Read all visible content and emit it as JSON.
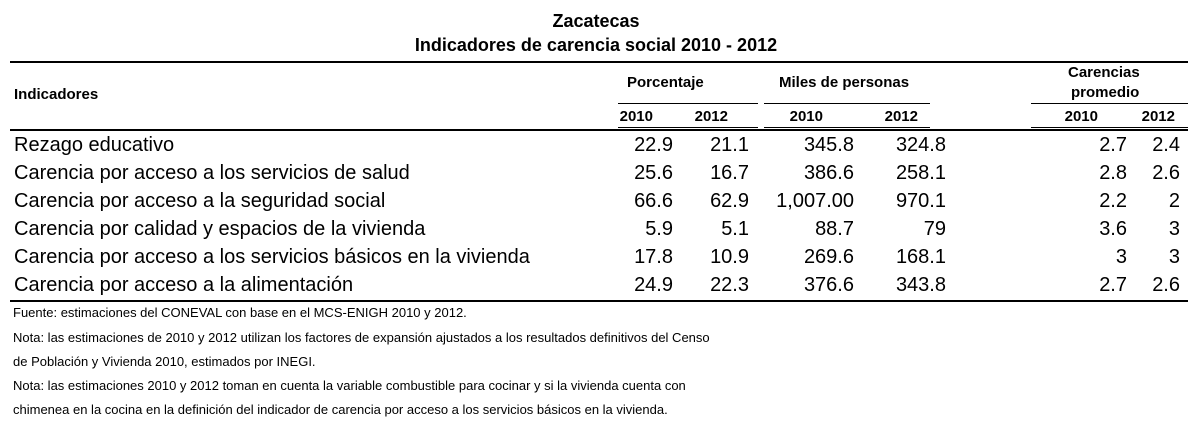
{
  "header": {
    "title": "Zacatecas",
    "subtitle": "Indicadores de carencia social 2010 - 2012"
  },
  "columns": {
    "indicadores": "Indicadores",
    "porcentaje": "Porcentaje",
    "miles": "Miles de personas",
    "carencias_line1": "Carencias",
    "carencias_line2": "promedio",
    "years": [
      "2010",
      "2012",
      "2010",
      "2012",
      "2010",
      "2012"
    ]
  },
  "rows": [
    {
      "label": "Rezago educativo",
      "values": [
        "22.9",
        "21.1",
        "345.8",
        "324.8",
        "2.7",
        "2.4"
      ]
    },
    {
      "label": "Carencia por acceso a los servicios de salud",
      "values": [
        "25.6",
        "16.7",
        "386.6",
        "258.1",
        "2.8",
        "2.6"
      ]
    },
    {
      "label": "Carencia por acceso a la seguridad social",
      "values": [
        "66.6",
        "62.9",
        "1,007.00",
        "970.1",
        "2.2",
        "2"
      ]
    },
    {
      "label": "Carencia por calidad y espacios de la vivienda",
      "values": [
        "5.9",
        "5.1",
        "88.7",
        "79",
        "3.6",
        "3"
      ]
    },
    {
      "label": "Carencia por acceso a los servicios básicos en la vivienda",
      "values": [
        "17.8",
        "10.9",
        "269.6",
        "168.1",
        "3",
        "3"
      ]
    },
    {
      "label": "Carencia por acceso a la alimentación",
      "values": [
        "24.9",
        "22.3",
        "376.6",
        "343.8",
        "2.7",
        "2.6"
      ]
    }
  ],
  "notes": [
    "Fuente: estimaciones del CONEVAL con base en el MCS-ENIGH 2010 y 2012.",
    "Nota: las estimaciones de 2010 y 2012 utilizan los factores de expansión ajustados a los resultados definitivos del Censo",
    "de Población y Vivienda 2010, estimados por INEGI.",
    "Nota: las estimaciones 2010 y 2012 toman en cuenta la variable combustible para cocinar y si la vivienda cuenta con",
    "chimenea en la cocina en la definición del indicador de carencia por acceso a los servicios básicos en la vivienda."
  ]
}
